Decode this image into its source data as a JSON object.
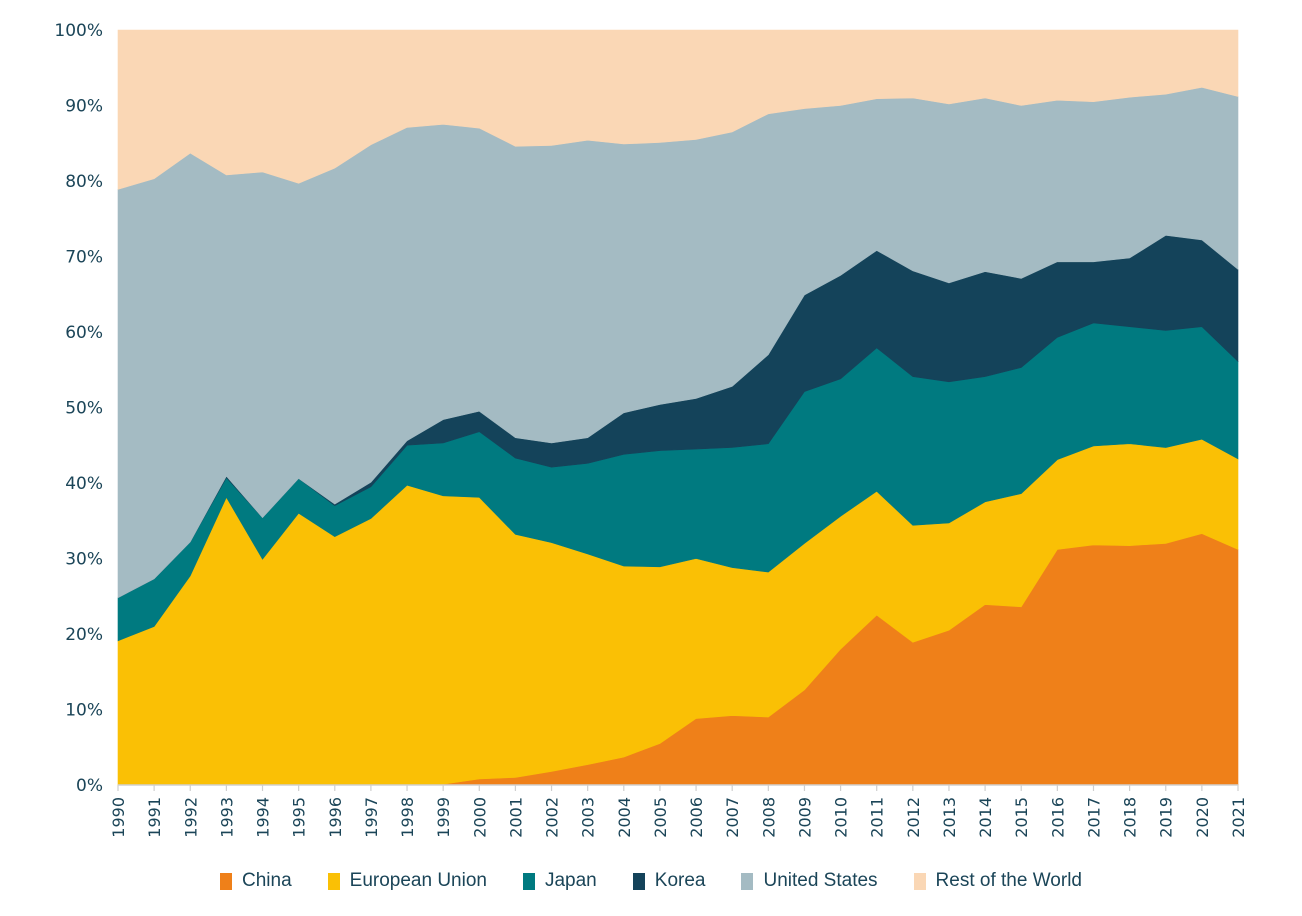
{
  "chart_data": {
    "type": "area",
    "stacked": true,
    "normalized": true,
    "title": "",
    "xlabel": "",
    "ylabel": "",
    "ylim": [
      0,
      100
    ],
    "y_ticks": [
      "0%",
      "10%",
      "20%",
      "30%",
      "40%",
      "50%",
      "60%",
      "70%",
      "80%",
      "90%",
      "100%"
    ],
    "y_tick_values": [
      0,
      10,
      20,
      30,
      40,
      50,
      60,
      70,
      80,
      90,
      100
    ],
    "grid": false,
    "legend_position": "bottom",
    "x": [
      "1990",
      "1991",
      "1992",
      "1993",
      "1994",
      "1995",
      "1996",
      "1997",
      "1998",
      "1999",
      "2000",
      "2001",
      "2002",
      "2003",
      "2004",
      "2005",
      "2006",
      "2007",
      "2008",
      "2009",
      "2010",
      "2011",
      "2012",
      "2013",
      "2014",
      "2015",
      "2016",
      "2017",
      "2018",
      "2019",
      "2020",
      "2021"
    ],
    "series": [
      {
        "name": "China",
        "color": "#ef8019",
        "values": [
          0,
          0,
          0,
          0,
          0,
          0,
          0,
          0,
          0,
          0.1,
          0.8,
          1.0,
          1.8,
          2.7,
          3.7,
          5.5,
          8.8,
          9.2,
          9.0,
          12.6,
          18.0,
          22.5,
          18.9,
          20.5,
          23.9,
          23.6,
          31.2,
          31.8,
          31.7,
          32.0,
          33.3,
          31.2
        ]
      },
      {
        "name": "European Union",
        "color": "#fac005",
        "values": [
          19.1,
          21.0,
          27.7,
          38.1,
          29.9,
          36.0,
          32.9,
          35.3,
          39.7,
          38.2,
          37.3,
          32.2,
          30.3,
          27.9,
          25.3,
          23.4,
          21.2,
          19.6,
          19.2,
          19.4,
          17.6,
          16.4,
          15.5,
          14.2,
          13.6,
          15.0,
          11.9,
          13.1,
          13.5,
          12.7,
          12.5,
          12.0
        ]
      },
      {
        "name": "Japan",
        "color": "#007a80",
        "values": [
          5.7,
          6.3,
          4.5,
          2.6,
          5.5,
          4.6,
          4.1,
          4.2,
          5.3,
          7.0,
          8.7,
          10.1,
          10.0,
          12.0,
          14.8,
          15.4,
          14.5,
          15.9,
          17.0,
          20.1,
          18.2,
          19.0,
          19.7,
          18.7,
          16.6,
          16.7,
          16.2,
          16.3,
          15.5,
          15.5,
          14.9,
          12.9
        ]
      },
      {
        "name": "Korea",
        "color": "#14435a",
        "values": [
          0,
          0,
          0,
          0.2,
          0,
          0,
          0.2,
          0.6,
          0.6,
          3.1,
          2.7,
          2.7,
          3.2,
          3.4,
          5.5,
          6.1,
          6.7,
          8.1,
          11.8,
          12.8,
          13.7,
          12.9,
          14.0,
          13.1,
          13.9,
          11.8,
          10.0,
          8.1,
          9.1,
          12.6,
          11.5,
          12.2
        ]
      },
      {
        "name": "United States",
        "color": "#a4bbc3",
        "values": [
          54.1,
          53.0,
          51.5,
          39.9,
          45.8,
          39.1,
          44.5,
          44.7,
          41.5,
          39.1,
          37.5,
          38.6,
          39.4,
          39.4,
          35.6,
          34.7,
          34.3,
          33.7,
          31.9,
          24.7,
          22.5,
          20.1,
          22.9,
          23.7,
          23.0,
          22.9,
          21.4,
          21.2,
          21.3,
          18.7,
          20.2,
          22.9
        ]
      },
      {
        "name": "Rest of the World",
        "color": "#fad7b5",
        "values": [
          21.1,
          19.7,
          16.3,
          19.2,
          18.8,
          20.3,
          18.3,
          15.2,
          12.9,
          12.5,
          13.0,
          15.4,
          15.3,
          14.6,
          15.1,
          14.9,
          14.5,
          13.5,
          11.1,
          10.4,
          10.0,
          9.1,
          9.0,
          9.8,
          9.0,
          10.0,
          9.3,
          9.5,
          8.9,
          8.5,
          7.6,
          8.8
        ]
      }
    ]
  }
}
